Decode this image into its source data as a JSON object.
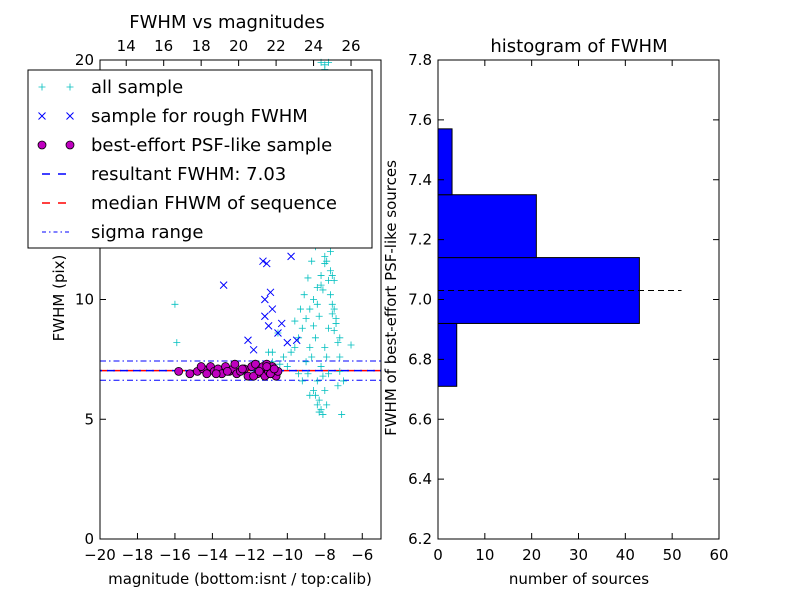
{
  "chart_data": [
    {
      "type": "scatter",
      "title": "FWHM vs magnitudes",
      "xlabel": "magnitude (bottom:isnt / top:calib)",
      "ylabel": "FWHM (pix)",
      "xlim": [
        -20,
        -5
      ],
      "ylim": [
        0,
        20
      ],
      "x_ticks": [
        -20,
        -18,
        -16,
        -14,
        -12,
        -10,
        -8,
        -6
      ],
      "x_tick_labels": [
        "−20",
        "−18",
        "−16",
        "−14",
        "−12",
        "−10",
        "−8",
        "−6"
      ],
      "y_ticks": [
        0,
        5,
        10,
        20
      ],
      "y_tick_labels": [
        "0",
        "5",
        "10",
        "20"
      ],
      "top_ticks_mag": [
        -18.6,
        -16.6,
        -14.6,
        -12.6,
        -10.6,
        -8.6,
        -6.6
      ],
      "top_tick_labels": [
        "14",
        "16",
        "18",
        "20",
        "22",
        "24",
        "26"
      ],
      "grid": false,
      "legend_position": "upper-left",
      "legend": [
        {
          "label": "all sample",
          "marker": "plus",
          "color": "#00bfbf"
        },
        {
          "label": "sample for rough FWHM",
          "marker": "x",
          "color": "#0000ff"
        },
        {
          "label": "best-effort PSF-like sample",
          "marker": "circle",
          "color": "#bf00bf"
        },
        {
          "label": "resultant FWHM: 7.03",
          "marker": "dashed-line",
          "color": "#0000ff"
        },
        {
          "label": "median FHWM of sequence",
          "marker": "dashed-line",
          "color": "#ff0000"
        },
        {
          "label": "sigma range",
          "marker": "dashdot-line",
          "color": "#0000ff"
        }
      ],
      "resultant_fwhm": 7.03,
      "median_fwhm": 7.03,
      "sigma_range": [
        6.63,
        7.43
      ],
      "series": [
        {
          "name": "all sample",
          "marker": "plus",
          "color": "#00bfbf",
          "x": [
            -16.0,
            -15.9,
            -14.1,
            -13.6,
            -12.3,
            -11.8,
            -11.5,
            -11.2,
            -11.0,
            -10.8,
            -10.6,
            -10.4,
            -10.2,
            -10.0,
            -9.8,
            -9.6,
            -9.4,
            -9.2,
            -9.0,
            -8.8,
            -8.6,
            -8.4,
            -8.2,
            -8.0,
            -7.8,
            -7.6,
            -7.4,
            -7.2,
            -7.0,
            -6.6,
            -10.8,
            -10.5,
            -9.6,
            -9.3,
            -9.1,
            -8.9,
            -8.7,
            -8.5,
            -8.3,
            -8.1,
            -7.9,
            -7.7,
            -7.5,
            -7.3,
            -9.4,
            -9.0,
            -8.8,
            -8.6,
            -8.4,
            -8.2,
            -8.0,
            -7.8,
            -7.6,
            -7.4,
            -7.2,
            -9.2,
            -8.9,
            -8.7,
            -8.5,
            -8.3,
            -8.1,
            -7.9,
            -7.7,
            -7.5,
            -7.3,
            -8.6,
            -8.4,
            -8.2,
            -8.0,
            -7.8,
            -8.8,
            -8.5,
            -8.3,
            -8.1,
            -7.9,
            -8.4,
            -8.2,
            -8.0,
            -7.8,
            -8.3,
            -8.1,
            -7.9,
            -8.6,
            -8.0,
            -7.7,
            -7.5,
            -8.2,
            -8.4,
            -7.9,
            -8.1,
            -8.5,
            -8.7,
            -9.0,
            -9.5,
            -8.0,
            -7.8,
            -7.6,
            -7.4,
            -8.3,
            -8.1,
            -8.9,
            -7.2,
            -7.1,
            -11.0,
            -8.2,
            -8.0,
            -7.6
          ],
          "y": [
            9.8,
            8.2,
            7.2,
            7.1,
            7.0,
            7.1,
            7.3,
            7.0,
            7.2,
            7.4,
            7.1,
            7.3,
            7.6,
            7.2,
            7.8,
            8.0,
            8.4,
            8.8,
            9.2,
            9.6,
            10.0,
            10.5,
            11.0,
            11.5,
            10.8,
            9.8,
            9.0,
            8.4,
            6.6,
            8.1,
            7.8,
            8.6,
            9.1,
            9.6,
            10.2,
            10.9,
            11.6,
            12.2,
            12.8,
            13.4,
            12.4,
            11.2,
            9.6,
            8.2,
            6.9,
            7.4,
            8.0,
            8.9,
            9.8,
            10.6,
            11.8,
            12.9,
            11.0,
            9.2,
            7.6,
            6.6,
            6.9,
            7.6,
            8.4,
            9.3,
            10.4,
            11.6,
            10.2,
            8.7,
            6.4,
            6.2,
            6.6,
            7.2,
            8.0,
            8.8,
            6.0,
            6.0,
            5.8,
            6.8,
            7.6,
            5.6,
            5.4,
            6.2,
            6.9,
            5.3,
            5.2,
            5.6,
            12.6,
            13.2,
            12.0,
            10.8,
            14.0,
            13.7,
            14.4,
            15.2,
            15.8,
            16.4,
            17.4,
            18.4,
            19.6,
            19.9,
            18.8,
            16.9,
            17.0,
            13.8,
            15.0,
            7.0,
            5.2,
            7.8,
            19.9,
            19.8,
            9.4
          ]
        },
        {
          "name": "sample for rough FWHM",
          "marker": "x",
          "color": "#0000ff",
          "x": [
            -13.4,
            -11.3,
            -11.1,
            -11.2,
            -10.9,
            -10.8,
            -11.2,
            -11.0,
            -10.5,
            -10.3,
            -10.0,
            -9.5,
            -9.3,
            -9.8,
            -12.1,
            -11.8
          ],
          "y": [
            10.6,
            11.6,
            11.5,
            10.0,
            10.3,
            9.6,
            9.3,
            8.9,
            8.6,
            9.0,
            8.2,
            8.3,
            12.3,
            11.8,
            8.3,
            7.9
          ]
        },
        {
          "name": "best-effort PSF-like sample",
          "marker": "circle",
          "color": "#bf00bf",
          "x": [
            -15.8,
            -15.2,
            -14.8,
            -14.5,
            -14.3,
            -14.1,
            -13.9,
            -13.7,
            -13.5,
            -13.3,
            -13.1,
            -12.9,
            -12.7,
            -12.5,
            -12.3,
            -12.1,
            -11.9,
            -11.7,
            -11.6,
            -11.4,
            -11.3,
            -11.2,
            -11.1,
            -11.0,
            -10.9,
            -10.8,
            -10.7,
            -10.6,
            -10.5,
            -14.6,
            -13.8,
            -13.2,
            -12.8,
            -12.4,
            -11.8,
            -11.5,
            -11.1,
            -10.9,
            -10.7
          ],
          "y": [
            7.0,
            6.9,
            7.0,
            7.1,
            6.9,
            7.2,
            7.0,
            7.1,
            6.9,
            7.2,
            7.0,
            7.1,
            6.9,
            7.0,
            7.1,
            6.8,
            7.2,
            7.3,
            6.9,
            7.1,
            7.2,
            6.8,
            7.3,
            7.0,
            6.9,
            7.2,
            7.1,
            6.8,
            7.0,
            7.2,
            6.9,
            7.0,
            7.3,
            7.1,
            6.8,
            7.0,
            7.2,
            6.9,
            7.1
          ]
        }
      ]
    },
    {
      "type": "bar",
      "orientation": "horizontal",
      "title": "histogram of FWHM",
      "xlabel": "number of sources",
      "ylabel": "FWHM of best-effort PSF-like sources",
      "xlim": [
        0,
        60
      ],
      "ylim": [
        6.2,
        7.8
      ],
      "x_ticks": [
        0,
        10,
        20,
        30,
        40,
        50,
        60
      ],
      "y_ticks": [
        6.2,
        6.4,
        6.6,
        6.8,
        7.0,
        7.2,
        7.4,
        7.6,
        7.8
      ],
      "y_tick_labels": [
        "6.2",
        "6.4",
        "6.6",
        "6.8",
        "7.0",
        "7.2",
        "7.4",
        "7.6",
        "7.8"
      ],
      "grid": false,
      "bars": [
        {
          "from": 6.71,
          "to": 6.92,
          "count": 4
        },
        {
          "from": 6.92,
          "to": 7.14,
          "count": 43
        },
        {
          "from": 7.14,
          "to": 7.35,
          "count": 21
        },
        {
          "from": 7.35,
          "to": 7.57,
          "count": 3
        }
      ],
      "bar_color": "#0000ff",
      "reference_line": {
        "y": 7.03,
        "x_range": [
          0,
          52
        ],
        "style": "dashed",
        "color": "#000000"
      }
    }
  ]
}
